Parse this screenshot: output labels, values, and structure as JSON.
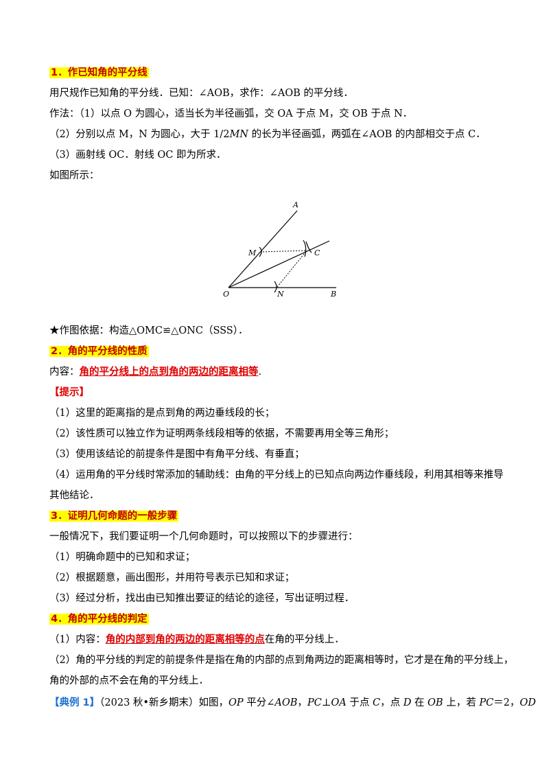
{
  "s1": {
    "heading": "1．作已知角的平分线",
    "l1": "用尺规作已知角的平分线．已知：∠AOB，求作：∠AOB 的平分线．",
    "l2": "作法：（1）以点 O 为圆心，适当长为半径画弧，交 OA 于点 M，交 OB 于点 N．",
    "l3a": "（2）分别以点 M，N 为圆心，大于 1/2",
    "l3b": "MN",
    "l3c": " 的长为半径画弧，两弧在∠AOB 的内部相交于点 C．",
    "l4": "（3）画射线 OC．射线 OC 即为所求．",
    "l5": "如图所示：",
    "basis": "★作图依据：构造△OMC≌△ONC（SSS）．"
  },
  "figure": {
    "A": "A",
    "B": "B",
    "C": "C",
    "M": "M",
    "N": "N",
    "O": "O"
  },
  "s2": {
    "heading": "2．角的平分线的性质",
    "content_prefix": "内容：",
    "content_red": "角的平分线上的点到角的两边的距离相等",
    "content_suffix": ".",
    "tip": "【提示】",
    "t1": "（1）这里的距离指的是点到角的两边垂线段的长；",
    "t2": "（2）该性质可以独立作为证明两条线段相等的依据，不需要再用全等三角形；",
    "t3": "（3）使用该结论的前提条件是图中有角平分线、有垂直；",
    "t4": "（4）运用角的平分线时常添加的辅助线：由角的平分线上的已知点向两边作垂线段，利用其相等来推导",
    "t4b": "其他结论．"
  },
  "s3": {
    "heading": "3．证明几何命题的一般步骤",
    "intro": "一般情况下，我们要证明一个几何命题时，可以按照以下的步骤进行：",
    "p1": "（1）明确命题中的已知和求证；",
    "p2": "（2）根据题意，画出图形，并用符号表示已知和求证；",
    "p3": "（3）经过分析，找出由已知推出要证的结论的途径，写出证明过程．"
  },
  "s4": {
    "heading": "4．角的平分线的判定",
    "c_prefix": "（1）内容：",
    "c_red": "角的内部到角的两边的距离相等的点",
    "c_suffix": "在角的平分线上．",
    "p2": "（2）角的平分线的判定的前提条件是指在角的内部的点到角两边的距离相等时，它才是在角的平分线上，",
    "p2b": "角的外部的点不会在角的平分线上．"
  },
  "example": {
    "tag": "【典例 1】",
    "source": "（2023 秋•新乡期末）如图，",
    "t1": "OP",
    "t2": " 平分∠",
    "t3": "AOB",
    "t4": "，",
    "t5": "PC",
    "t6": "⊥",
    "t7": "OA",
    "t8": " 于点 ",
    "t9": "C",
    "t10": "，点 ",
    "t11": "D",
    "t12": " 在 ",
    "t13": "OB",
    "t14": " 上，若 ",
    "t15": "PC",
    "t16": "＝2，",
    "t17": "OD"
  }
}
